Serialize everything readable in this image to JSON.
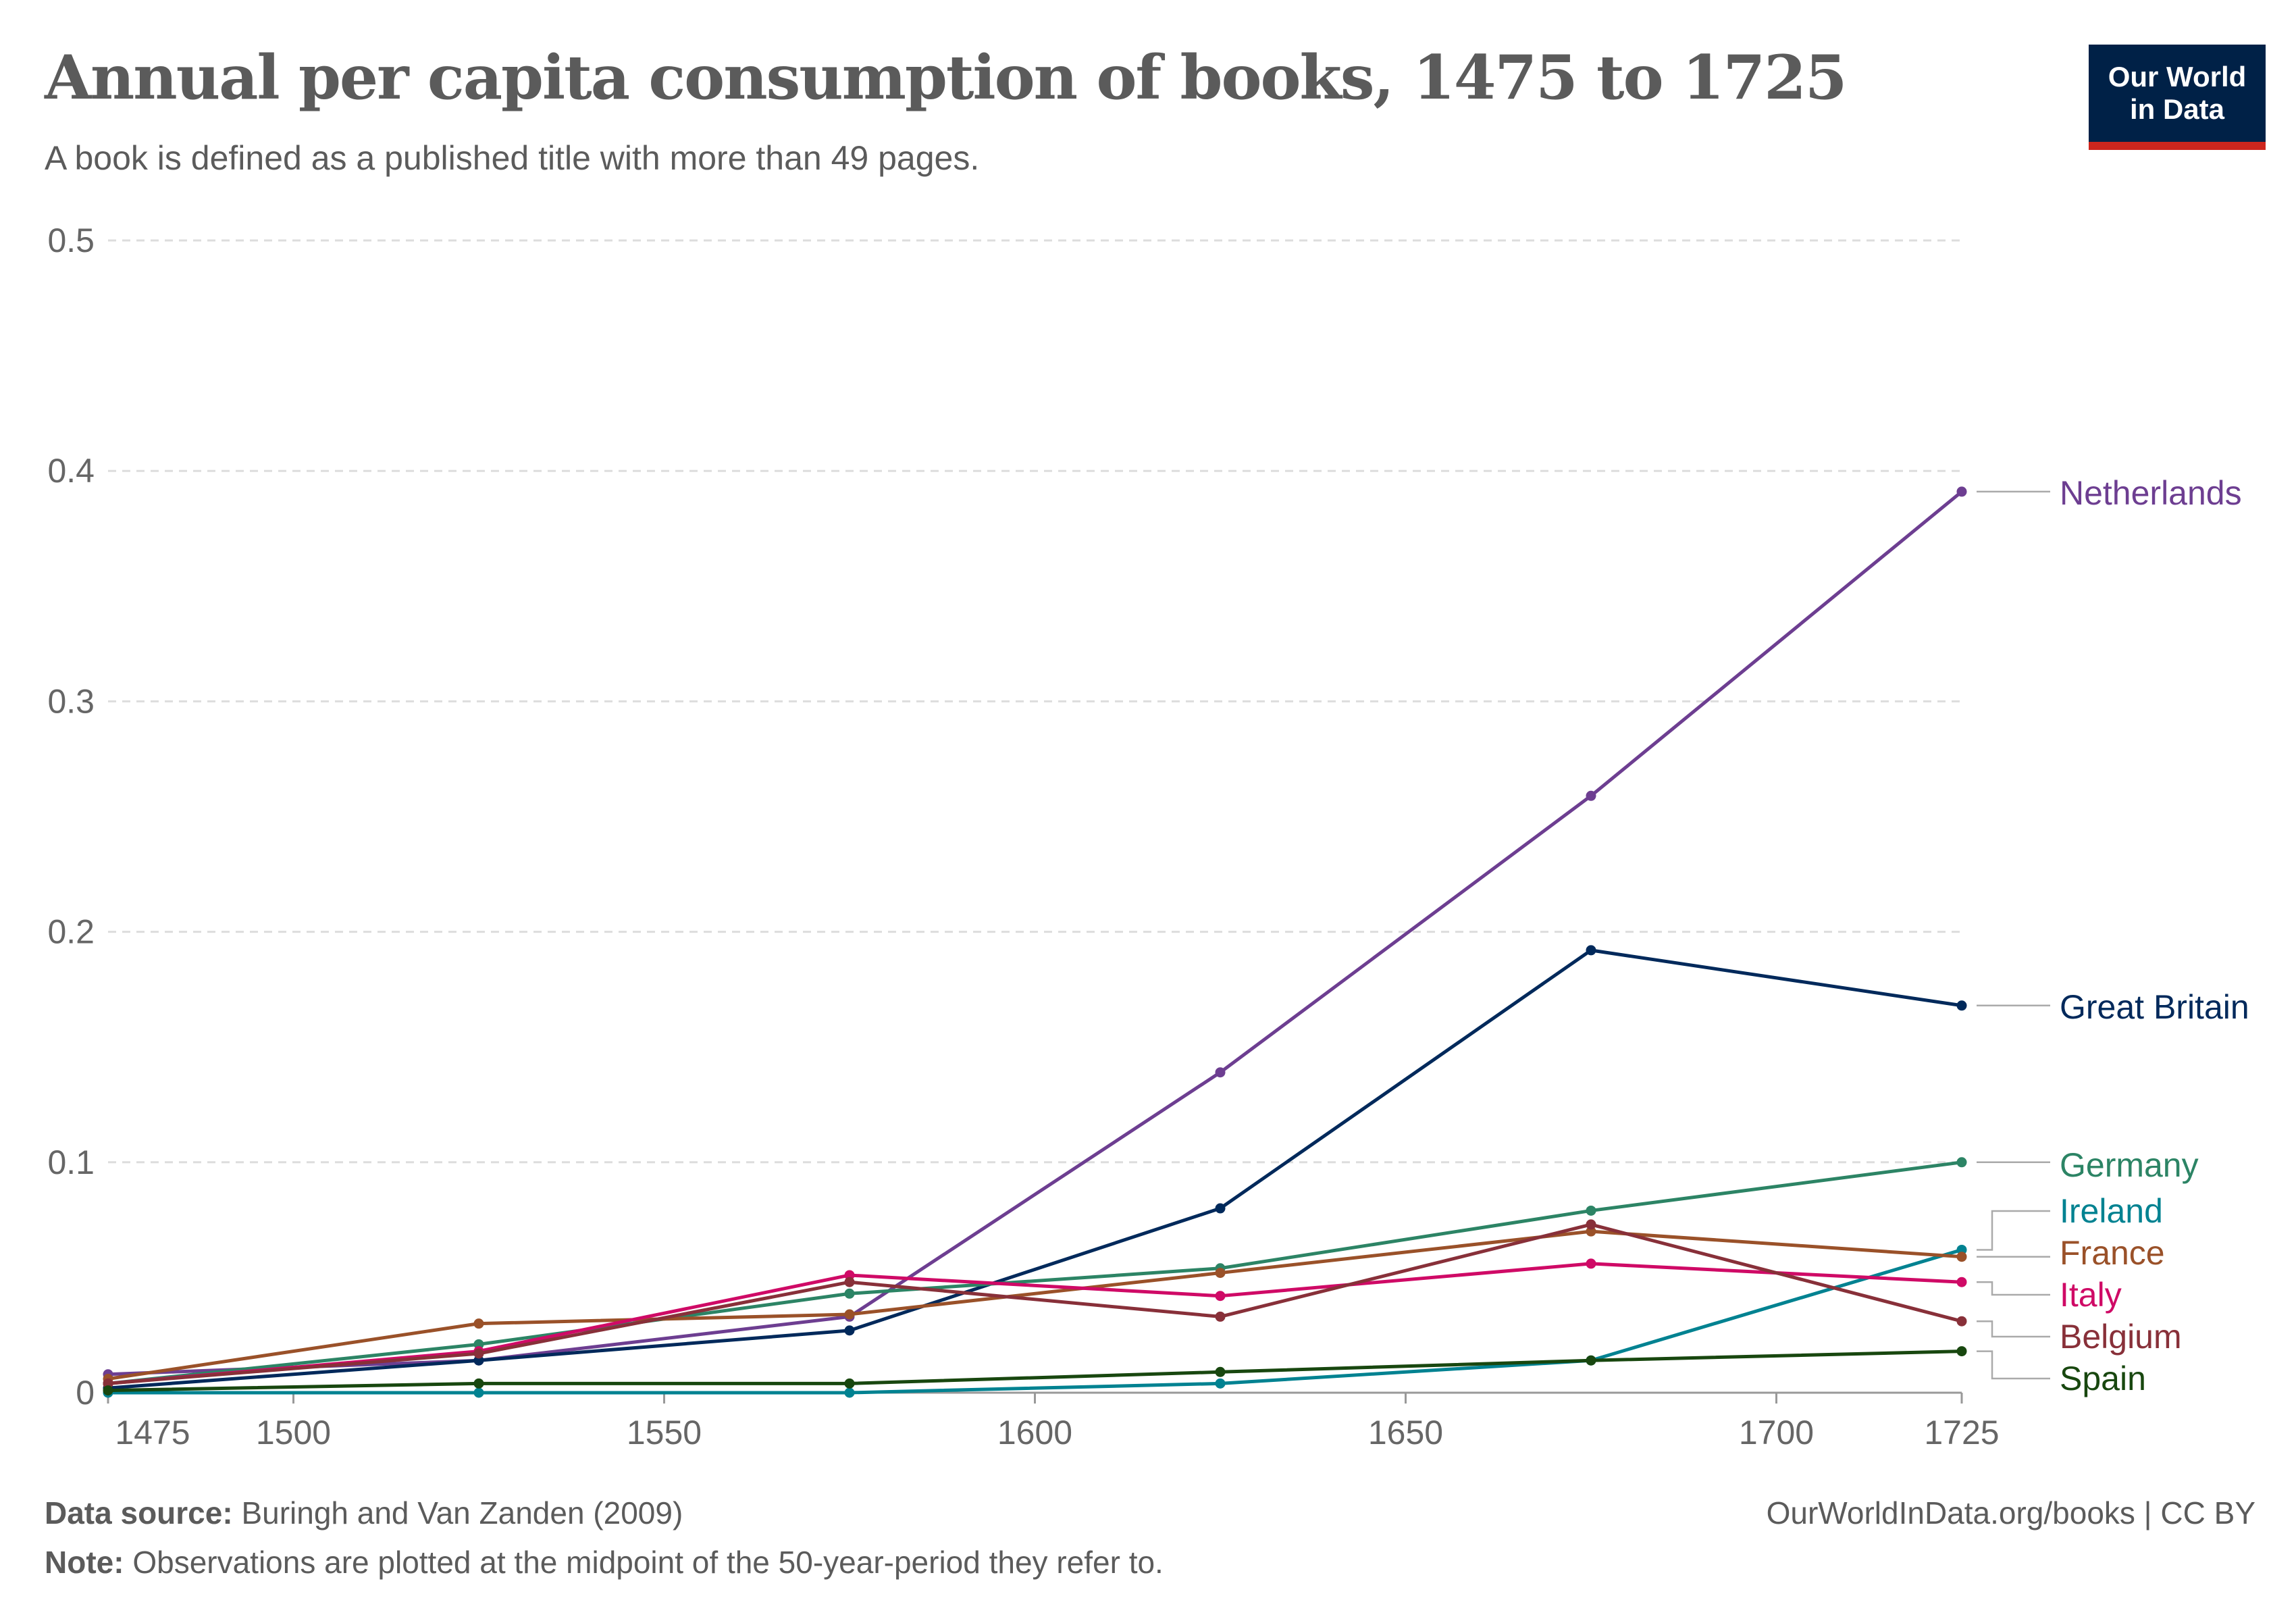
{
  "header": {
    "title": "Annual per capita consumption of books, 1475 to 1725",
    "subtitle": "A book is defined as a published title with more than 49 pages.",
    "logo_line1": "Our World",
    "logo_line2": "in Data"
  },
  "footer": {
    "source_label": "Data source:",
    "source_text": "Buringh and Van Zanden (2009)",
    "note_label": "Note:",
    "note_text": "Observations are plotted at the midpoint of the 50-year-period they refer to.",
    "url": "OurWorldInData.org/books | CC BY"
  },
  "chart_data": {
    "type": "line",
    "title": "Annual per capita consumption of books, 1475 to 1725",
    "subtitle": "A book is defined as a published title with more than 49 pages.",
    "x": [
      1475,
      1525,
      1575,
      1625,
      1675,
      1725
    ],
    "xlim": [
      1475,
      1725
    ],
    "ylim": [
      0,
      0.5
    ],
    "x_ticks": [
      1475,
      1500,
      1550,
      1600,
      1650,
      1700,
      1725
    ],
    "x_tick_labels": [
      "1475",
      "1500",
      "1550",
      "1600",
      "1650",
      "1700",
      "1725"
    ],
    "y_ticks": [
      0,
      0.1,
      0.2,
      0.3,
      0.4,
      0.5
    ],
    "y_tick_labels": [
      "0",
      "0.1",
      "0.2",
      "0.3",
      "0.4",
      "0.5"
    ],
    "grid": true,
    "legend": "labels at line ends (right)",
    "series": [
      {
        "name": "Netherlands",
        "color": "#6d3e91",
        "values": [
          0.008,
          0.014,
          0.033,
          0.139,
          0.259,
          0.391
        ]
      },
      {
        "name": "Great Britain",
        "color": "#00295b",
        "values": [
          0.002,
          0.014,
          0.027,
          0.08,
          0.192,
          0.168
        ]
      },
      {
        "name": "Germany",
        "color": "#2c8465",
        "values": [
          0.004,
          0.021,
          0.043,
          0.054,
          0.079,
          0.1
        ]
      },
      {
        "name": "Ireland",
        "color": "#008291",
        "values": [
          0.0,
          0.0,
          0.0,
          0.004,
          0.014,
          0.062
        ]
      },
      {
        "name": "France",
        "color": "#9a5129",
        "values": [
          0.006,
          0.03,
          0.034,
          0.052,
          0.07,
          0.059
        ]
      },
      {
        "name": "Italy",
        "color": "#cf0a66",
        "values": [
          0.004,
          0.018,
          0.051,
          0.042,
          0.056,
          0.048
        ]
      },
      {
        "name": "Belgium",
        "color": "#883039",
        "values": [
          0.004,
          0.017,
          0.048,
          0.033,
          0.073,
          0.031
        ]
      },
      {
        "name": "Spain",
        "color": "#18470f",
        "values": [
          0.001,
          0.004,
          0.004,
          0.009,
          0.014,
          0.018
        ]
      }
    ]
  }
}
